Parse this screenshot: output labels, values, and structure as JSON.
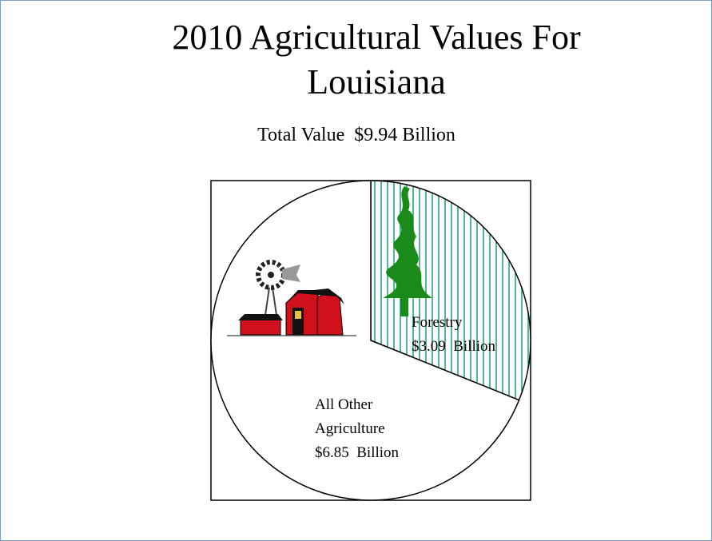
{
  "chart_data": {
    "type": "pie",
    "title": "2010 Agricultural Values For Louisiana",
    "subtitle": "Total Value  $9.94 Billion",
    "categories": [
      "Forestry",
      "All Other Agriculture"
    ],
    "values": [
      3.09,
      6.85
    ],
    "value_labels": [
      "$3.09  Billion",
      "$6.85  Billion"
    ],
    "colors": [
      "#1b9e77",
      "#ffffff"
    ],
    "patterns": [
      "vertical-lines",
      "none"
    ]
  }
}
